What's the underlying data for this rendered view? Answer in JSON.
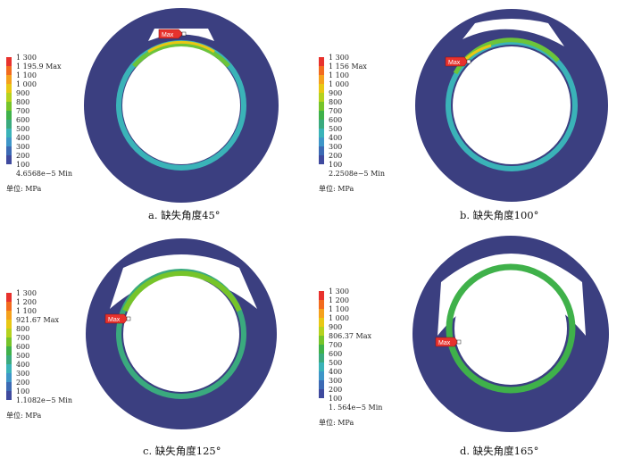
{
  "legend_colors": [
    "#e8322d",
    "#f26b1e",
    "#f5a11c",
    "#e8c814",
    "#b5d21e",
    "#76c42a",
    "#3fb14a",
    "#3aaa7e",
    "#3ab3b8",
    "#3e96c8",
    "#3c6ab4",
    "#3f4a9e"
  ],
  "panels": [
    {
      "caption": "a. 缺失角度45°",
      "legend": [
        "1 300",
        "1 195.9 Max",
        "1 100",
        "1 000",
        "900",
        "800",
        "700",
        "600",
        "500",
        "400",
        "300",
        "200",
        "100",
        "4.6568e−5 Min"
      ],
      "unit": "单位: MPa",
      "max_label": "Max",
      "missing_angle_deg": 45
    },
    {
      "caption": "b. 缺失角度100°",
      "legend": [
        "1 300",
        "1 156 Max",
        "1 100",
        "1 000",
        "900",
        "800",
        "700",
        "600",
        "500",
        "400",
        "300",
        "200",
        "100",
        "2.2508e−5 Min"
      ],
      "unit": "单位: MPa",
      "max_label": "Max",
      "missing_angle_deg": 100
    },
    {
      "caption": "c. 缺失角度125°",
      "legend": [
        "1 300",
        "1 200",
        "1 100",
        "921.67 Max",
        "800",
        "700",
        "600",
        "500",
        "400",
        "300",
        "200",
        "100",
        "1.1082e−5 Min"
      ],
      "unit": "单位: MPa",
      "max_label": "Max",
      "missing_angle_deg": 125
    },
    {
      "caption": "d. 缺失角度165°",
      "legend": [
        "1 300",
        "1 200",
        "1 100",
        "1 000",
        "900",
        "806.37 Max",
        "700",
        "600",
        "500",
        "400",
        "300",
        "200",
        "100",
        "1. 564e−5 Min"
      ],
      "unit": "单位: MPa",
      "max_label": "Max",
      "missing_angle_deg": 165
    }
  ]
}
